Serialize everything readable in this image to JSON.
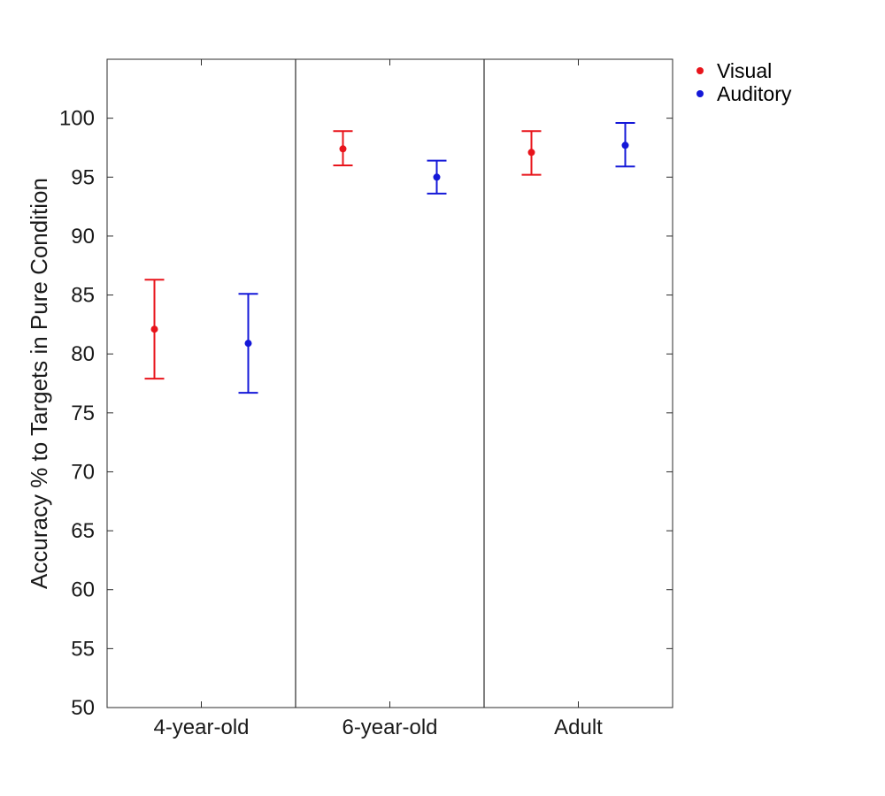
{
  "chart_data": {
    "type": "scatter",
    "title": "",
    "xlabel": "",
    "ylabel": "Accuracy % to Targets in Pure Condition",
    "categories": [
      "4-year-old",
      "6-year-old",
      "Adult"
    ],
    "ylim": [
      50,
      105
    ],
    "yticks": [
      50,
      55,
      60,
      65,
      70,
      75,
      80,
      85,
      90,
      95,
      100
    ],
    "grid": false,
    "legend_position": "outside-top-right",
    "series": [
      {
        "name": "Visual",
        "color": "#e8141b",
        "values": [
          82.1,
          97.4,
          97.1
        ],
        "err_low": [
          77.9,
          96.0,
          95.2
        ],
        "err_high": [
          86.3,
          98.9,
          98.9
        ]
      },
      {
        "name": "Auditory",
        "color": "#1418d8",
        "values": [
          80.9,
          95.0,
          97.7
        ],
        "err_low": [
          76.7,
          93.6,
          95.9
        ],
        "err_high": [
          85.1,
          96.4,
          99.6
        ]
      }
    ]
  }
}
